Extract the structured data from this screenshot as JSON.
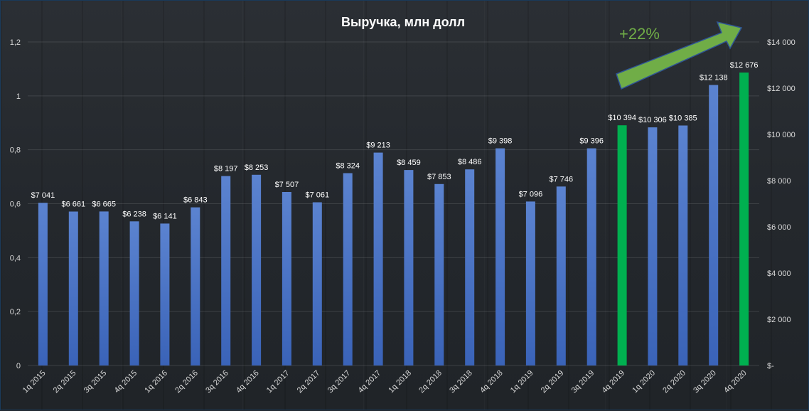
{
  "chart_data": {
    "type": "bar",
    "title": "Выручка, млн долл",
    "categories": [
      "1q 2015",
      "2q 2015",
      "3q 2015",
      "4q 2015",
      "1q 2016",
      "2q 2016",
      "3q 2016",
      "4q 2016",
      "1q 2017",
      "2q 2017",
      "3q 2017",
      "4q 2017",
      "1q 2018",
      "2q 2018",
      "3q 2018",
      "4q 2018",
      "1q 2019",
      "2q 2019",
      "3q 2019",
      "4q 2019",
      "1q 2020",
      "2q 2020",
      "3q 2020",
      "4q 2020"
    ],
    "values": [
      7041,
      6661,
      6665,
      6238,
      6141,
      6843,
      8197,
      8253,
      7507,
      7061,
      8324,
      9213,
      8459,
      7853,
      8486,
      9398,
      7096,
      7746,
      9396,
      10394,
      10306,
      10385,
      12138,
      12676
    ],
    "data_labels": [
      "$7 041",
      "$6 661",
      "$6 665",
      "$6 238",
      "$6 141",
      "$6 843",
      "$8 197",
      "$8 253",
      "$7 507",
      "$7 061",
      "$8 324",
      "$9 213",
      "$8 459",
      "$7 853",
      "$8 486",
      "$9 398",
      "$7 096",
      "$7 746",
      "$9 396",
      "$10 394",
      "$10 306",
      "$10 385",
      "$12 138",
      "$12 676"
    ],
    "highlighted": [
      "4q 2019",
      "4q 2020"
    ],
    "left_axis": {
      "ylim": [
        0,
        1.2
      ],
      "ticks": [
        "0",
        "0,2",
        "0,4",
        "0,6",
        "0,8",
        "1",
        "1,2"
      ]
    },
    "right_axis": {
      "ylim": [
        0,
        14000
      ],
      "ticks": [
        "$-",
        "$2 000",
        "$4 000",
        "$6 000",
        "$8 000",
        "$10 000",
        "$12 000",
        "$14 000"
      ]
    },
    "annotation": "+22%",
    "grid": true,
    "legend": "none",
    "colors": {
      "bar": "#4472c4",
      "bar_highlight": "#00b050",
      "arrow": "#70ad47",
      "arrow_border": "#2f5597"
    }
  }
}
